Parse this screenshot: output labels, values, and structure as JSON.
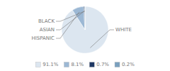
{
  "chart_data": {
    "type": "pie",
    "categories": [
      "WHITE",
      "HISPANIC",
      "ASIAN",
      "BLACK"
    ],
    "values": [
      91.1,
      8.1,
      0.7,
      0.2
    ],
    "value_labels": [
      "91.1%",
      "8.1%",
      "0.7%",
      "0.2%"
    ],
    "colors": [
      "#dce6f0",
      "#9cb8d4",
      "#1f3864",
      "#7aa0be"
    ]
  }
}
